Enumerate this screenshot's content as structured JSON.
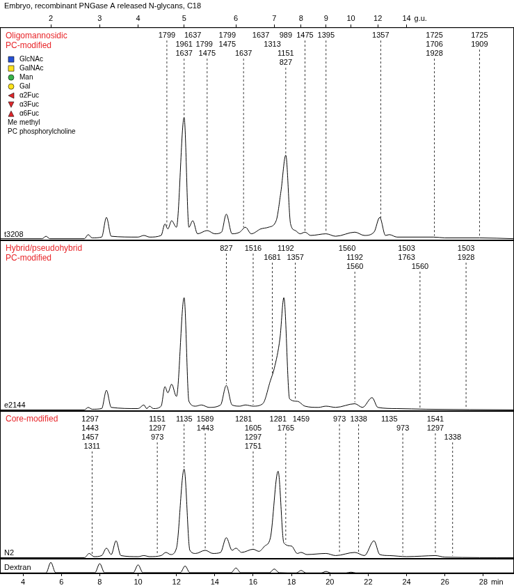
{
  "chart_data": [
    {
      "type": "line",
      "title": "Embryo, recombinant PNGase A released N-glycans, C18",
      "subtitle": [
        "Oligomannosidic",
        "PC-modified"
      ],
      "xlim": [
        2.8,
        29.6
      ],
      "x2lim": [
        2.8,
        29.6
      ],
      "x2label": "g.u.",
      "x2ticks": [
        {
          "value": 5.45,
          "label": "2"
        },
        {
          "value": 8.0,
          "label": "3"
        },
        {
          "value": 10.0,
          "label": "4"
        },
        {
          "value": 12.4,
          "label": "5"
        },
        {
          "value": 15.1,
          "label": "6"
        },
        {
          "value": 17.1,
          "label": "7"
        },
        {
          "value": 18.5,
          "label": "8"
        },
        {
          "value": 19.8,
          "label": "9"
        },
        {
          "value": 21.1,
          "label": "10"
        },
        {
          "value": 22.5,
          "label": "12"
        },
        {
          "value": 24.0,
          "label": "14"
        }
      ],
      "ylim": [
        0,
        130
      ],
      "tick_labels": "x",
      "grid": false,
      "series": [
        {
          "name": "t3208",
          "color": "#000000",
          "x": [
            2.8,
            5.0,
            5.2,
            5.4,
            7.2,
            7.4,
            7.6,
            8.1,
            8.35,
            8.6,
            10.0,
            10.3,
            10.6,
            11.2,
            11.4,
            11.55,
            11.75,
            12.0,
            12.4,
            12.65,
            12.85,
            13.1,
            13.6,
            14.0,
            14.35,
            14.6,
            14.9,
            15.3,
            15.6,
            15.9,
            16.4,
            16.8,
            17.2,
            17.45,
            17.7,
            17.95,
            18.2,
            18.45,
            18.7,
            19.0,
            19.8,
            20.3,
            21.3,
            21.8,
            22.3,
            22.6,
            22.9,
            23.1,
            23.5,
            25.4,
            26.0,
            27.8,
            29.6
          ],
          "values": [
            1,
            1,
            2.5,
            1,
            1,
            3.5,
            1.5,
            2,
            14,
            2.5,
            2,
            3,
            2,
            3,
            10,
            7,
            12,
            8,
            75,
            8,
            12,
            4,
            6,
            4,
            5,
            16,
            4,
            5,
            8,
            4,
            7,
            8,
            12,
            30,
            52,
            10,
            6,
            4,
            5,
            3,
            4,
            2.5,
            5,
            3,
            5,
            14,
            3,
            3.5,
            2,
            2,
            1.5,
            1.5,
            1
          ]
        }
      ],
      "annotations": [
        {
          "x": 11.5,
          "text": "1799"
        },
        {
          "x": 12.4,
          "text": "1961"
        },
        {
          "x": 12.4,
          "text": "1637"
        },
        {
          "x": 12.85,
          "text": "1637"
        },
        {
          "x": 13.45,
          "text": "1799"
        },
        {
          "x": 13.6,
          "text": "1475"
        },
        {
          "x": 14.65,
          "text": "1799"
        },
        {
          "x": 14.65,
          "text": "1475"
        },
        {
          "x": 15.5,
          "text": "1637"
        },
        {
          "x": 16.4,
          "text": "1637"
        },
        {
          "x": 17.0,
          "text": "1313"
        },
        {
          "x": 17.7,
          "text": "989"
        },
        {
          "x": 17.7,
          "text": "1151"
        },
        {
          "x": 17.7,
          "text": "827"
        },
        {
          "x": 18.7,
          "text": "1475"
        },
        {
          "x": 19.8,
          "text": "1395"
        },
        {
          "x": 22.65,
          "text": "1357"
        },
        {
          "x": 25.45,
          "text": "1725"
        },
        {
          "x": 25.45,
          "text": "1706"
        },
        {
          "x": 25.45,
          "text": "1928"
        },
        {
          "x": 27.8,
          "text": "1725"
        },
        {
          "x": 27.8,
          "text": "1909"
        }
      ],
      "key": [
        {
          "marker": "square",
          "color": "#2550d6",
          "label": "GlcNAc"
        },
        {
          "marker": "square",
          "color": "#ffe21a",
          "label": "GalNAc"
        },
        {
          "marker": "circle",
          "color": "#36b34a",
          "label": "Man"
        },
        {
          "marker": "circle",
          "color": "#ffe21a",
          "label": "Gal"
        },
        {
          "marker": "triangle-left",
          "color": "#e3262b",
          "label": "α2Fuc"
        },
        {
          "marker": "triangle-down",
          "color": "#e3262b",
          "label": "α3Fuc"
        },
        {
          "marker": "triangle-up",
          "color": "#e3262b",
          "label": "α6Fuc"
        },
        {
          "abbr": "Me",
          "label": "methyl"
        },
        {
          "abbr": "PC",
          "label": "phosphorylcholine"
        }
      ]
    },
    {
      "type": "line",
      "subtitle": [
        "Hybrid/pseudohybrid",
        "PC-modified"
      ],
      "xlim": [
        2.8,
        29.6
      ],
      "ylim": [
        0,
        140
      ],
      "tick_labels": false,
      "grid": false,
      "series": [
        {
          "name": "e2144",
          "color": "#000000",
          "x": [
            2.8,
            7.2,
            7.4,
            7.6,
            8.1,
            8.35,
            8.6,
            10.0,
            10.3,
            10.45,
            10.6,
            10.8,
            11.2,
            11.4,
            11.55,
            11.75,
            12.0,
            12.4,
            12.65,
            13.0,
            13.3,
            13.7,
            14.3,
            14.6,
            14.9,
            15.3,
            15.6,
            16.0,
            16.5,
            16.9,
            17.1,
            17.4,
            17.6,
            17.9,
            18.3,
            18.7,
            19.4,
            19.8,
            20.3,
            21.3,
            21.7,
            22.2,
            22.5,
            23.5,
            25.0,
            29.6
          ],
          "values": [
            1,
            1,
            3,
            1.5,
            2,
            17,
            3,
            2,
            5,
            2,
            4,
            2,
            4,
            20,
            15,
            22,
            12,
            93,
            8,
            4,
            5,
            3,
            5,
            21,
            5,
            4,
            5,
            4,
            6,
            25,
            35,
            60,
            93,
            10,
            8,
            4,
            3,
            4,
            3,
            6,
            3,
            11,
            3,
            2,
            1.5,
            1
          ]
        }
      ],
      "annotations": [
        {
          "x": 14.6,
          "text": "827"
        },
        {
          "x": 16.0,
          "text": "1516"
        },
        {
          "x": 17.0,
          "text": "1681"
        },
        {
          "x": 17.7,
          "text": "1192"
        },
        {
          "x": 18.2,
          "text": "1357"
        },
        {
          "x": 20.9,
          "text": "1560"
        },
        {
          "x": 21.3,
          "text": "1192"
        },
        {
          "x": 21.3,
          "text": "1560"
        },
        {
          "x": 24.0,
          "text": "1503"
        },
        {
          "x": 24.0,
          "text": "1763"
        },
        {
          "x": 24.7,
          "text": "1560"
        },
        {
          "x": 27.1,
          "text": "1503"
        },
        {
          "x": 27.1,
          "text": "1928"
        }
      ]
    },
    {
      "type": "line",
      "subtitle": [
        "Core-modified"
      ],
      "xlim": [
        2.8,
        29.6
      ],
      "ylim": [
        0,
        140
      ],
      "tick_labels": false,
      "grid": false,
      "series": [
        {
          "name": "N2",
          "color": "#000000",
          "x": [
            2.8,
            7.2,
            7.45,
            7.7,
            8.1,
            8.35,
            8.6,
            8.85,
            9.1,
            10.0,
            10.3,
            10.6,
            11.2,
            11.45,
            11.7,
            12.0,
            12.4,
            12.7,
            13.0,
            13.5,
            13.9,
            14.3,
            14.6,
            14.9,
            15.1,
            15.4,
            16.0,
            16.3,
            16.6,
            16.9,
            17.3,
            17.6,
            18.0,
            18.3,
            18.5,
            18.8,
            19.8,
            20.3,
            21.3,
            21.8,
            22.3,
            22.6,
            23.1,
            24.0,
            24.8,
            25.5,
            26.0,
            29.6
          ],
          "values": [
            1,
            1,
            5,
            2,
            3,
            10,
            4,
            17,
            3,
            2,
            3,
            2,
            3,
            6,
            4,
            10,
            85,
            8,
            5,
            8,
            5,
            6,
            20,
            8,
            10,
            6,
            9,
            7,
            12,
            20,
            83,
            15,
            12,
            5,
            6,
            4,
            5,
            3,
            6,
            3,
            17,
            4,
            3,
            2,
            2.5,
            3,
            1.5,
            1
          ]
        }
      ],
      "annotations": [
        {
          "x": 7.5,
          "text": "1297"
        },
        {
          "x": 7.5,
          "text": "1443"
        },
        {
          "x": 7.5,
          "text": "1457"
        },
        {
          "x": 7.6,
          "text": "1311"
        },
        {
          "x": 11.0,
          "text": "1151"
        },
        {
          "x": 11.0,
          "text": "1297"
        },
        {
          "x": 11.0,
          "text": "973"
        },
        {
          "x": 12.4,
          "text": "1135"
        },
        {
          "x": 13.5,
          "text": "1589"
        },
        {
          "x": 13.5,
          "text": "1443"
        },
        {
          "x": 15.5,
          "text": "1281"
        },
        {
          "x": 16.0,
          "text": "1605"
        },
        {
          "x": 16.0,
          "text": "1297"
        },
        {
          "x": 16.0,
          "text": "1751"
        },
        {
          "x": 17.3,
          "text": "1281"
        },
        {
          "x": 17.7,
          "text": "1765"
        },
        {
          "x": 18.5,
          "text": "1459"
        },
        {
          "x": 20.5,
          "text": "973"
        },
        {
          "x": 21.5,
          "text": "1338"
        },
        {
          "x": 23.1,
          "text": "1135"
        },
        {
          "x": 23.8,
          "text": "973"
        },
        {
          "x": 25.5,
          "text": "1541"
        },
        {
          "x": 25.5,
          "text": "1297"
        },
        {
          "x": 26.4,
          "text": "1338"
        }
      ]
    },
    {
      "type": "line",
      "xlim": [
        2.8,
        29.6
      ],
      "xticks": [
        4,
        6,
        8,
        10,
        12,
        14,
        16,
        18,
        20,
        22,
        24,
        26,
        28
      ],
      "xlabel": "min",
      "ylim": [
        0,
        60
      ],
      "tick_labels": "x",
      "grid": false,
      "series": [
        {
          "name": "Dextran",
          "color": "#000000",
          "x": [
            2.8,
            5.2,
            5.45,
            5.7,
            7.75,
            8.0,
            8.25,
            9.75,
            10.0,
            10.25,
            12.2,
            12.45,
            12.7,
            14.85,
            15.1,
            15.35,
            16.85,
            17.1,
            17.35,
            18.25,
            18.5,
            18.75,
            19.55,
            19.8,
            20.05,
            20.85,
            21.1,
            21.35,
            29.6
          ],
          "values": [
            2,
            2,
            45,
            3,
            3,
            40,
            3,
            3,
            35,
            3,
            3,
            30,
            3,
            3,
            22,
            3,
            3,
            18,
            3,
            2,
            12,
            2,
            2,
            8,
            2,
            2,
            5,
            2,
            2
          ]
        }
      ]
    }
  ]
}
